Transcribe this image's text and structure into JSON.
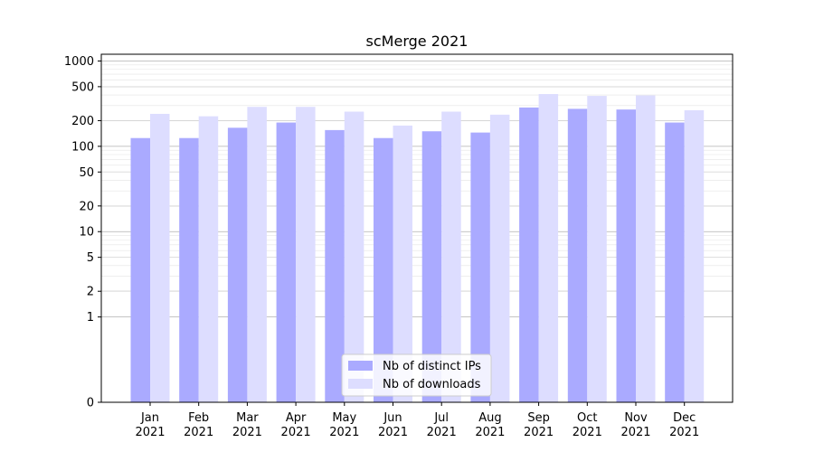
{
  "chart_data": {
    "type": "bar",
    "title": "scMerge 2021",
    "xlabel": "",
    "ylabel": "",
    "yscale": "symlog",
    "ylim": [
      0,
      1200
    ],
    "y_ticks": [
      0,
      1,
      2,
      5,
      10,
      20,
      50,
      100,
      200,
      500,
      1000
    ],
    "categories": [
      [
        "Jan",
        "2021"
      ],
      [
        "Feb",
        "2021"
      ],
      [
        "Mar",
        "2021"
      ],
      [
        "Apr",
        "2021"
      ],
      [
        "May",
        "2021"
      ],
      [
        "Jun",
        "2021"
      ],
      [
        "Jul",
        "2021"
      ],
      [
        "Aug",
        "2021"
      ],
      [
        "Sep",
        "2021"
      ],
      [
        "Oct",
        "2021"
      ],
      [
        "Nov",
        "2021"
      ],
      [
        "Dec",
        "2021"
      ]
    ],
    "series": [
      {
        "name": "Nb of distinct IPs",
        "color": "#aaaaff",
        "values": [
          125,
          125,
          165,
          190,
          155,
          125,
          150,
          145,
          285,
          275,
          270,
          190
        ]
      },
      {
        "name": "Nb of downloads",
        "color": "#ddddff",
        "values": [
          240,
          225,
          290,
          290,
          255,
          175,
          255,
          235,
          410,
          390,
          395,
          265
        ]
      }
    ],
    "grid": true,
    "legend_position": "bottom-center"
  }
}
